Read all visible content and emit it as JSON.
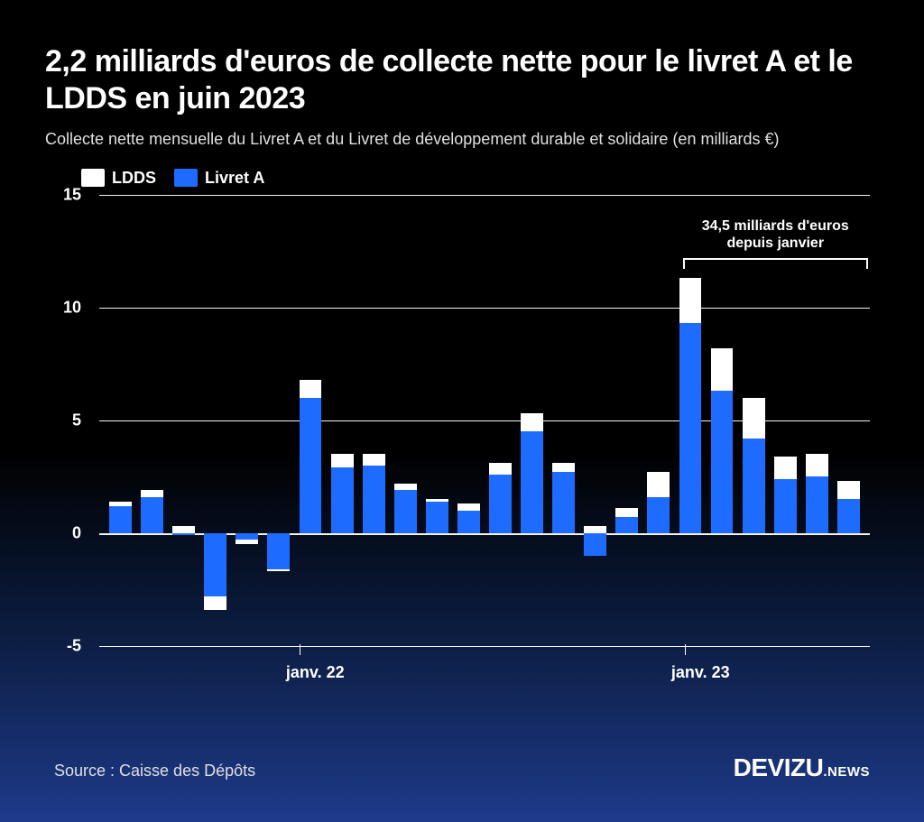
{
  "title": "2,2 milliards d'euros de collecte nette pour le livret A et le LDDS en juin 2023",
  "subtitle": "Collecte nette mensuelle du Livret A et du Livret de développement durable et solidaire (en milliards €)",
  "legend": {
    "items": [
      {
        "label": "LDDS",
        "color": "#ffffff"
      },
      {
        "label": "Livret A",
        "color": "#1e6bff"
      }
    ]
  },
  "chart": {
    "type": "stacked-bar",
    "ylim": [
      -5,
      15
    ],
    "yticks": [
      -5,
      0,
      5,
      10,
      15
    ],
    "grid_color": "#ffffff",
    "series_colors": {
      "ldds": "#ffffff",
      "livret_a": "#1e6bff"
    },
    "bar_width_ratio": 0.8,
    "months": [
      "2021-07",
      "2021-08",
      "2021-09",
      "2021-10",
      "2021-11",
      "2021-12",
      "2022-01",
      "2022-02",
      "2022-03",
      "2022-04",
      "2022-05",
      "2022-06",
      "2022-07",
      "2022-08",
      "2022-09",
      "2022-10",
      "2022-11",
      "2022-12",
      "2023-01",
      "2023-02",
      "2023-03",
      "2023-04",
      "2023-05",
      "2023-06"
    ],
    "data": [
      {
        "livret_a": 1.2,
        "ldds": 0.2
      },
      {
        "livret_a": 1.6,
        "ldds": 0.3
      },
      {
        "livret_a": -0.1,
        "ldds": 0.3
      },
      {
        "livret_a": -2.8,
        "ldds": -0.6
      },
      {
        "livret_a": -0.3,
        "ldds": -0.2
      },
      {
        "livret_a": -1.6,
        "ldds": -0.1
      },
      {
        "livret_a": 6.0,
        "ldds": 0.8
      },
      {
        "livret_a": 2.9,
        "ldds": 0.6
      },
      {
        "livret_a": 3.0,
        "ldds": 0.5
      },
      {
        "livret_a": 1.9,
        "ldds": 0.3
      },
      {
        "livret_a": 1.4,
        "ldds": 0.1
      },
      {
        "livret_a": 1.0,
        "ldds": 0.3
      },
      {
        "livret_a": 2.6,
        "ldds": 0.5
      },
      {
        "livret_a": 4.5,
        "ldds": 0.8
      },
      {
        "livret_a": 2.7,
        "ldds": 0.4
      },
      {
        "livret_a": -1.0,
        "ldds": 0.3
      },
      {
        "livret_a": 0.7,
        "ldds": 0.4
      },
      {
        "livret_a": 1.6,
        "ldds": 1.1
      },
      {
        "livret_a": 9.3,
        "ldds": 2.0
      },
      {
        "livret_a": 6.3,
        "ldds": 1.9
      },
      {
        "livret_a": 4.2,
        "ldds": 1.8
      },
      {
        "livret_a": 2.4,
        "ldds": 1.0
      },
      {
        "livret_a": 2.5,
        "ldds": 1.0
      },
      {
        "livret_a": 1.5,
        "ldds": 0.8
      }
    ],
    "x_tick_labels": [
      {
        "index": 6,
        "label": "janv. 22"
      },
      {
        "index": 18,
        "label": "janv. 23"
      }
    ],
    "annotation": {
      "text_line1": "34,5 milliards d'euros",
      "text_line2": "depuis janvier",
      "bracket_from_index": 18,
      "bracket_to_index": 23
    }
  },
  "source": "Source : Caisse des Dépôts",
  "logo": {
    "main": "DEVIZU",
    "sub": ".NEWS"
  }
}
